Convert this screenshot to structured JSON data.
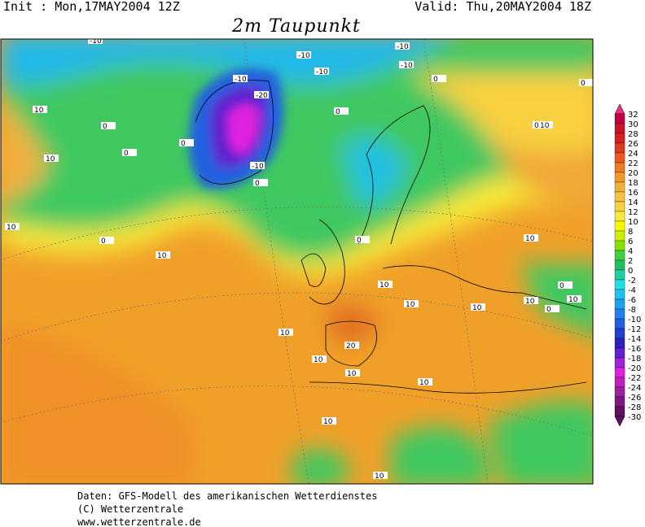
{
  "header": {
    "init": "Init : Mon,17MAY2004 12Z",
    "valid": "Valid: Thu,20MAY2004 18Z"
  },
  "title": "2m Taupunkt",
  "colorbar": {
    "ticks": [
      32,
      30,
      28,
      26,
      24,
      22,
      20,
      18,
      16,
      14,
      12,
      10,
      8,
      6,
      4,
      2,
      0,
      -2,
      -4,
      -6,
      -8,
      -10,
      -12,
      -14,
      -16,
      -18,
      -20,
      -22,
      -24,
      -26,
      -28,
      -30
    ],
    "colors": [
      "#e8307f",
      "#c00040",
      "#c81428",
      "#d42020",
      "#e03820",
      "#f05820",
      "#f07820",
      "#f09828",
      "#f0b038",
      "#f8c040",
      "#f8d040",
      "#f8e838",
      "#f8f800",
      "#c8f000",
      "#88e000",
      "#40d040",
      "#20c060",
      "#20d0a0",
      "#20e0e0",
      "#20c0f0",
      "#20a0f0",
      "#2080f0",
      "#2060e0",
      "#2040d0",
      "#3020c0",
      "#6020d0",
      "#a020e0",
      "#e020e0",
      "#c020c0",
      "#a020a0",
      "#801880",
      "#601060"
    ]
  },
  "contour_labels": [
    "-10",
    "-10",
    "-10",
    "-10",
    "-10",
    "-20",
    "-10",
    "-10",
    "0",
    "0",
    "0",
    "0",
    "0",
    "0",
    "0",
    "0",
    "0",
    "0",
    "10",
    "10",
    "10",
    "10",
    "10",
    "10",
    "10",
    "10",
    "10",
    "10",
    "10",
    "10",
    "10",
    "20",
    "10",
    "10",
    "10",
    "0",
    "0",
    "10"
  ],
  "footer": {
    "source": "Daten: GFS-Modell des amerikanischen Wetterdienstes",
    "copyright": "(C) Wetterzentrale",
    "url": "www.wetterzentrale.de"
  }
}
